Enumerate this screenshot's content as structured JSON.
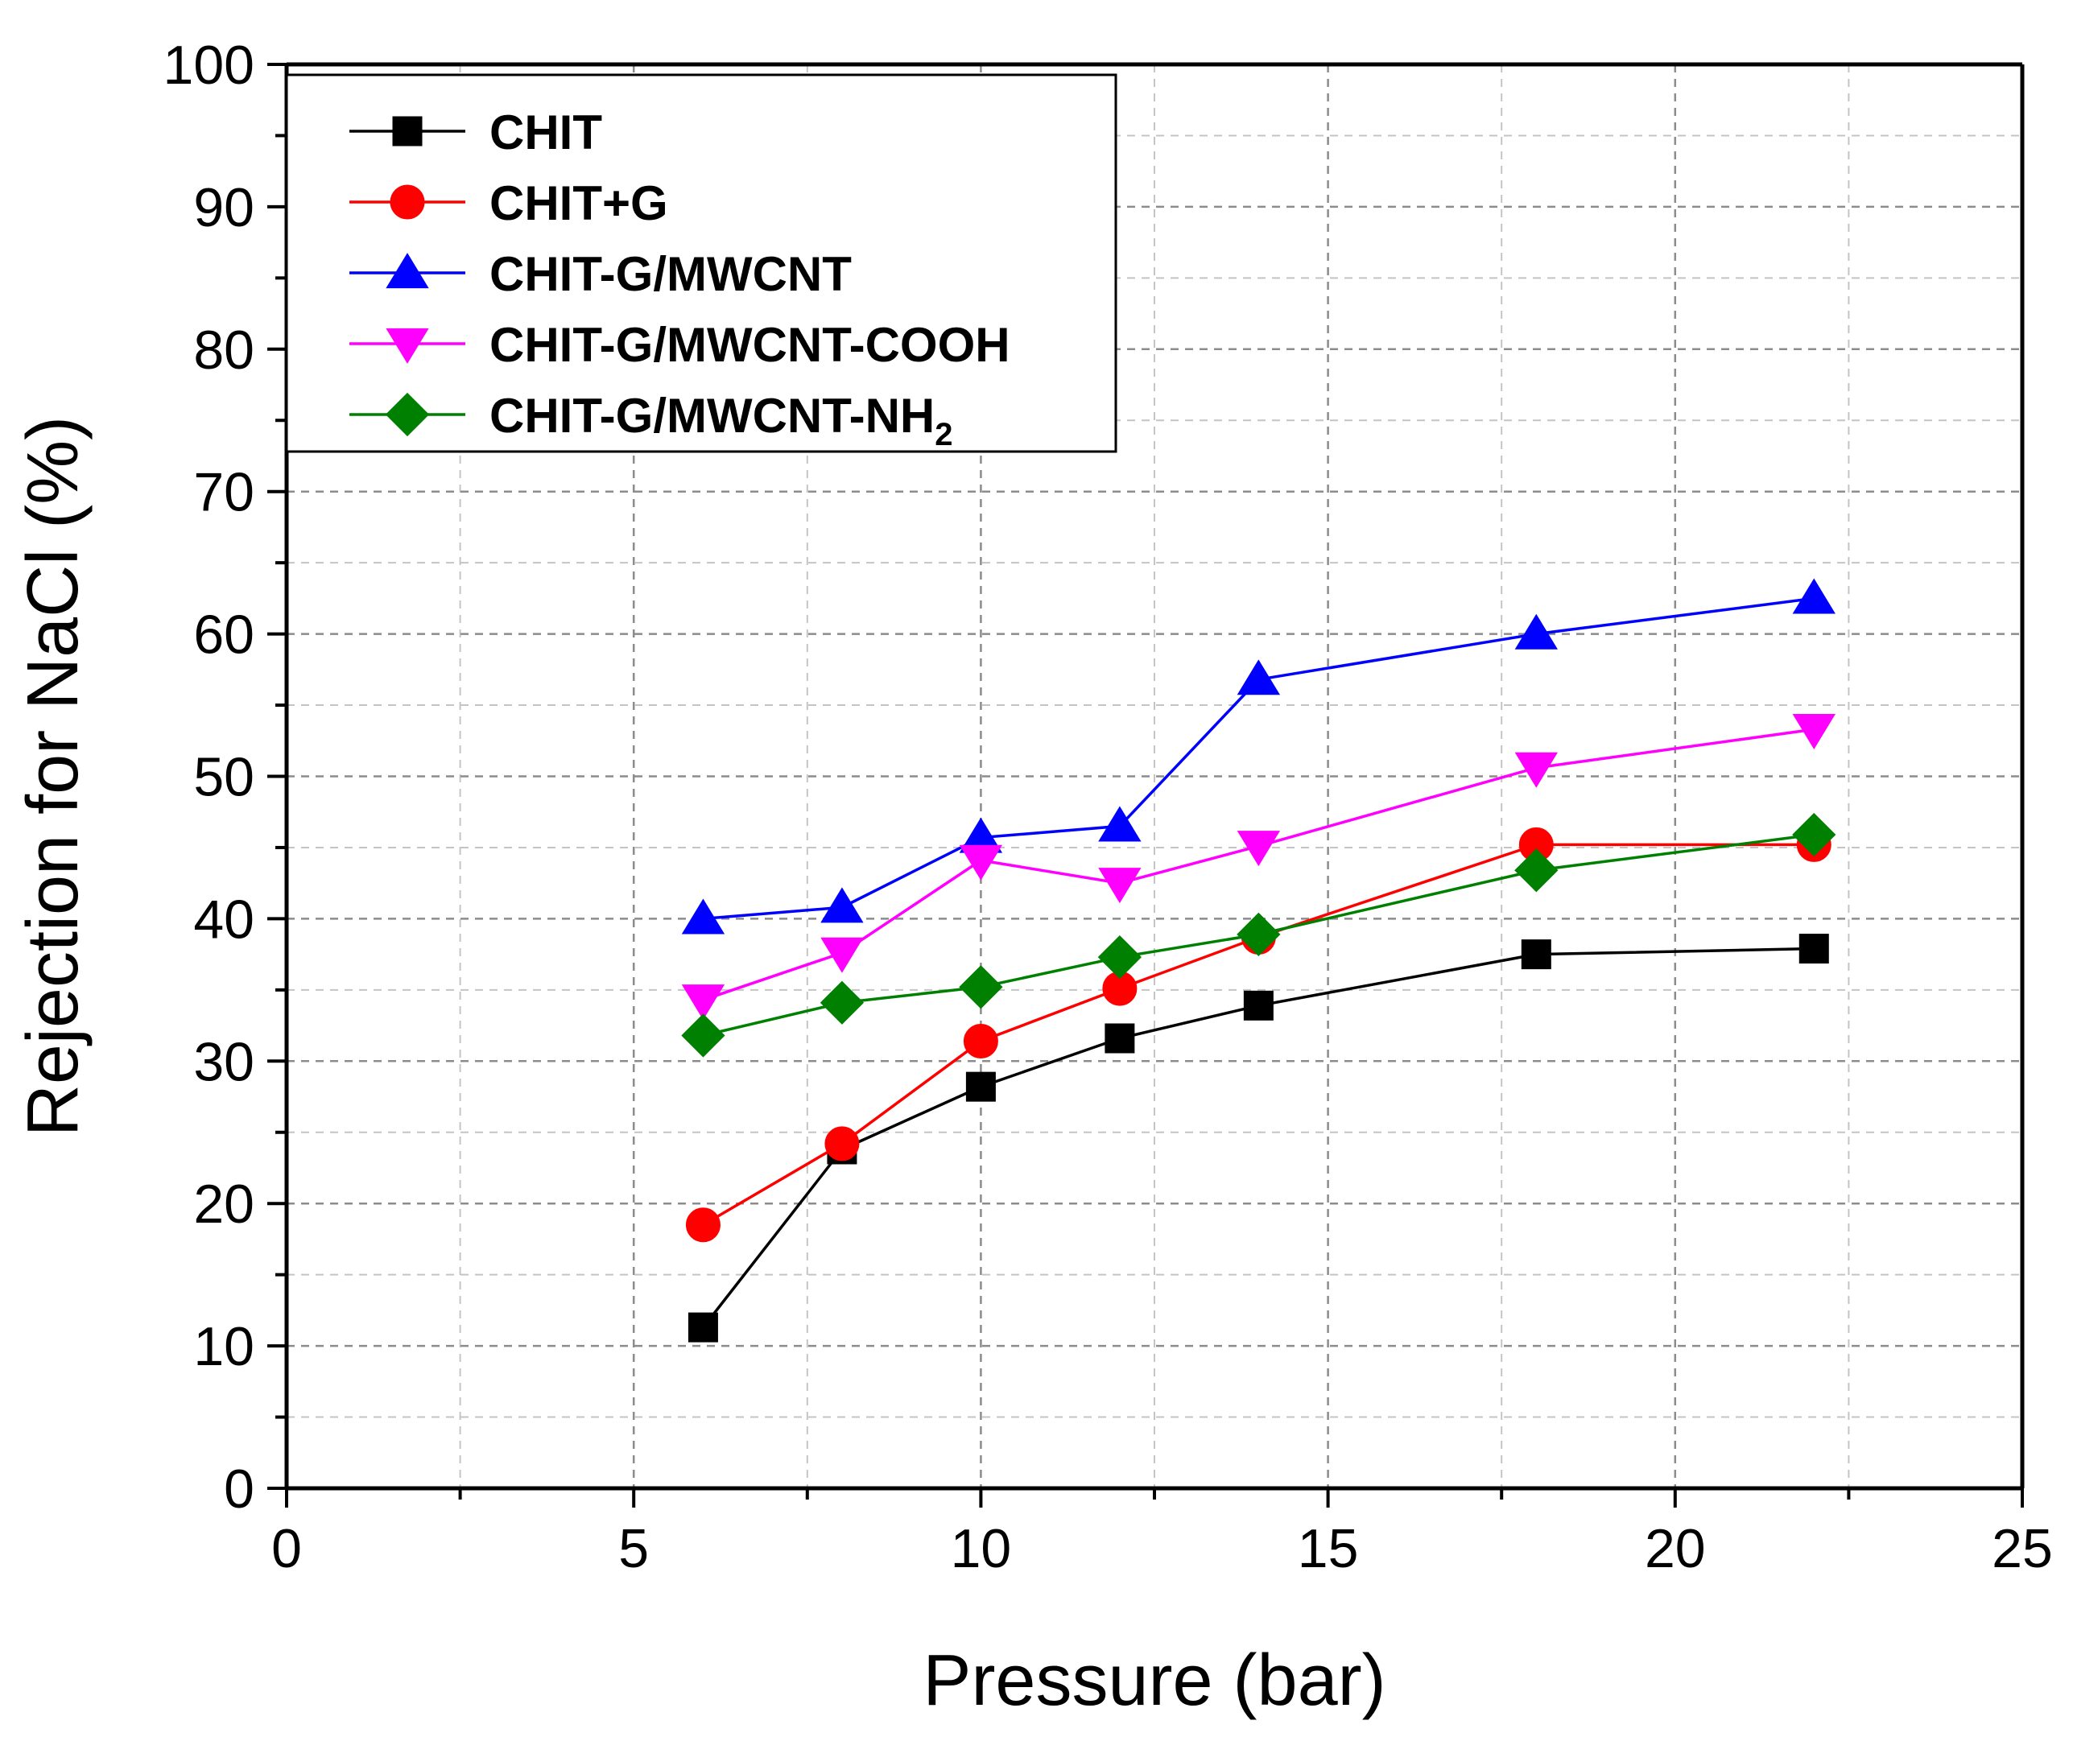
{
  "chart_data": {
    "type": "line",
    "title": "",
    "xlabel": "Pressure (bar)",
    "ylabel": "Rejection for NaCl (%)",
    "xlim": [
      0,
      25
    ],
    "ylim": [
      0,
      100
    ],
    "xticks": [
      0,
      5,
      10,
      15,
      20,
      25
    ],
    "yticks": [
      0,
      10,
      20,
      30,
      40,
      50,
      60,
      70,
      80,
      90,
      100
    ],
    "x_tick_labels": [
      "0",
      "5",
      "10",
      "15",
      "20",
      "25"
    ],
    "y_tick_labels": [
      "0",
      "10",
      "20",
      "30",
      "40",
      "50",
      "60",
      "70",
      "80",
      "90",
      "100"
    ],
    "grid": true,
    "legend_position": "top-left",
    "x": [
      6,
      8,
      10,
      12,
      14,
      18,
      22
    ],
    "series": [
      {
        "name": "CHIT",
        "display": {
          "main": "CHIT",
          "sub": ""
        },
        "color": "#000000",
        "marker": "square",
        "values": [
          11.3,
          23.8,
          28.2,
          31.6,
          33.9,
          37.5,
          37.9
        ]
      },
      {
        "name": "CHIT+G",
        "display": {
          "main": "CHIT+G",
          "sub": ""
        },
        "color": "#ff0000",
        "marker": "circle",
        "values": [
          18.5,
          24.2,
          31.4,
          35.1,
          38.7,
          45.2,
          45.2
        ]
      },
      {
        "name": "CHIT-G/MWCNT",
        "display": {
          "main": "CHIT-G/MWCNT",
          "sub": ""
        },
        "color": "#0000ff",
        "marker": "triangle-up",
        "values": [
          40.0,
          40.8,
          45.7,
          46.5,
          56.8,
          60.0,
          62.5
        ]
      },
      {
        "name": "CHIT-G/MWCNT-COOH",
        "display": {
          "main": "CHIT-G/MWCNT-COOH",
          "sub": ""
        },
        "color": "#ff00ff",
        "marker": "triangle-down",
        "values": [
          34.3,
          37.6,
          44.1,
          42.5,
          45.1,
          50.6,
          53.3
        ]
      },
      {
        "name": "CHIT-G/MWCNT-NH2",
        "display": {
          "main": "CHIT-G/MWCNT-NH",
          "sub": "2"
        },
        "color": "#008000",
        "marker": "diamond",
        "values": [
          31.8,
          34.1,
          35.2,
          37.3,
          38.9,
          43.4,
          45.9
        ]
      }
    ]
  }
}
